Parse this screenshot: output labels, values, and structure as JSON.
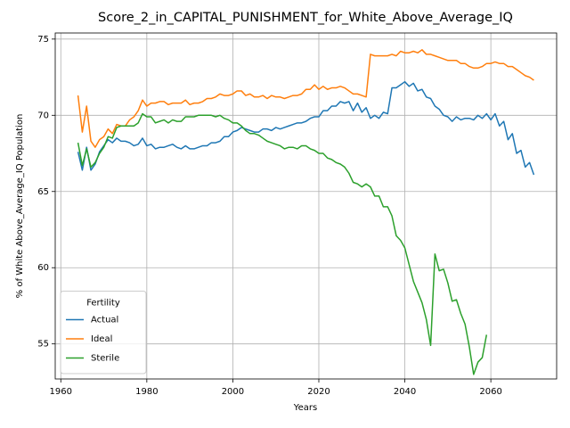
{
  "chart_data": {
    "type": "line",
    "title": "Score_2_in_CAPITAL_PUNISHMENT_for_White_Above_Average_IQ",
    "xlabel": "Years",
    "ylabel": "% of White Above_Average_IQ Population",
    "legend_title": "Fertility",
    "legend": "lower left",
    "grid": true,
    "xlim": [
      1958.7,
      2075.3
    ],
    "ylim": [
      52.7,
      75.4
    ],
    "xticks": [
      1960,
      1980,
      2000,
      2020,
      2040,
      2060
    ],
    "yticks": [
      55,
      60,
      65,
      70,
      75
    ],
    "x": [
      1964,
      1965,
      1966,
      1967,
      1968,
      1969,
      1970,
      1971,
      1972,
      1973,
      1974,
      1975,
      1976,
      1977,
      1978,
      1979,
      1980,
      1981,
      1982,
      1983,
      1984,
      1985,
      1986,
      1987,
      1988,
      1989,
      1990,
      1991,
      1992,
      1993,
      1994,
      1995,
      1996,
      1997,
      1998,
      1999,
      2000,
      2001,
      2002,
      2003,
      2004,
      2005,
      2006,
      2007,
      2008,
      2009,
      2010,
      2011,
      2012,
      2013,
      2014,
      2015,
      2016,
      2017,
      2018,
      2019,
      2020,
      2021,
      2022,
      2023,
      2024,
      2025,
      2026,
      2027,
      2028,
      2029,
      2030,
      2031,
      2032,
      2033,
      2034,
      2035,
      2036,
      2037,
      2038,
      2039,
      2040,
      2041,
      2042,
      2043,
      2044,
      2045,
      2046,
      2047,
      2048,
      2049,
      2050,
      2051,
      2052,
      2053,
      2054,
      2055,
      2056,
      2057,
      2058,
      2059,
      2060,
      2061,
      2062,
      2063,
      2064,
      2065,
      2066,
      2067,
      2068,
      2069,
      2070
    ],
    "series": [
      {
        "name": "Actual",
        "color": "#1f77b4",
        "values": [
          67.6,
          66.4,
          67.9,
          66.4,
          66.8,
          67.6,
          68.0,
          68.4,
          68.2,
          68.5,
          68.3,
          68.3,
          68.2,
          68.0,
          68.1,
          68.5,
          68.0,
          68.1,
          67.8,
          67.9,
          67.9,
          68.0,
          68.1,
          67.9,
          67.8,
          68.0,
          67.8,
          67.8,
          67.9,
          68.0,
          68.0,
          68.2,
          68.2,
          68.3,
          68.6,
          68.6,
          68.9,
          69.0,
          69.2,
          69.1,
          69.0,
          68.9,
          68.9,
          69.1,
          69.1,
          69.0,
          69.2,
          69.1,
          69.2,
          69.3,
          69.4,
          69.5,
          69.5,
          69.6,
          69.8,
          69.9,
          69.9,
          70.3,
          70.3,
          70.6,
          70.6,
          70.9,
          70.8,
          70.9,
          70.3,
          70.8,
          70.2,
          70.5,
          69.8,
          70.0,
          69.8,
          70.2,
          70.1,
          71.8,
          71.8,
          72.0,
          72.2,
          71.9,
          72.1,
          71.6,
          71.7,
          71.2,
          71.1,
          70.6,
          70.4,
          70.0,
          69.9,
          69.6,
          69.9,
          69.7,
          69.8,
          69.8,
          69.7,
          70.0,
          69.8,
          70.1,
          69.7,
          70.1,
          69.3,
          69.6,
          68.4,
          68.8,
          67.5,
          67.7,
          66.6,
          66.9,
          66.1
        ]
      },
      {
        "name": "Ideal",
        "color": "#ff7f0e",
        "values": [
          71.3,
          68.9,
          70.6,
          68.3,
          67.9,
          68.4,
          68.6,
          69.1,
          68.8,
          69.4,
          69.3,
          69.3,
          69.7,
          69.9,
          70.3,
          71.0,
          70.6,
          70.8,
          70.8,
          70.9,
          70.9,
          70.7,
          70.8,
          70.8,
          70.8,
          71.0,
          70.7,
          70.8,
          70.8,
          70.9,
          71.1,
          71.1,
          71.2,
          71.4,
          71.3,
          71.3,
          71.4,
          71.6,
          71.6,
          71.3,
          71.4,
          71.2,
          71.2,
          71.3,
          71.1,
          71.3,
          71.2,
          71.2,
          71.1,
          71.2,
          71.3,
          71.3,
          71.4,
          71.7,
          71.7,
          72.0,
          71.7,
          71.9,
          71.7,
          71.8,
          71.8,
          71.9,
          71.8,
          71.6,
          71.4,
          71.4,
          71.3,
          71.2,
          74.0,
          73.9,
          73.9,
          73.9,
          73.9,
          74.0,
          73.9,
          74.2,
          74.1,
          74.1,
          74.2,
          74.1,
          74.3,
          74.0,
          74.0,
          73.9,
          73.8,
          73.7,
          73.6,
          73.6,
          73.6,
          73.4,
          73.4,
          73.2,
          73.1,
          73.1,
          73.2,
          73.4,
          73.4,
          73.5,
          73.4,
          73.4,
          73.2,
          73.2,
          73.0,
          72.8,
          72.6,
          72.5,
          72.3
        ]
      },
      {
        "name": "Sterile",
        "color": "#2ca02c",
        "values": [
          68.2,
          66.7,
          67.8,
          66.6,
          66.9,
          67.5,
          67.9,
          68.6,
          68.5,
          69.2,
          69.3,
          69.3,
          69.3,
          69.3,
          69.5,
          70.1,
          69.9,
          69.9,
          69.5,
          69.6,
          69.7,
          69.5,
          69.7,
          69.6,
          69.6,
          69.9,
          69.9,
          69.9,
          70.0,
          70.0,
          70.0,
          70.0,
          69.9,
          70.0,
          69.8,
          69.7,
          69.5,
          69.5,
          69.3,
          69.0,
          68.8,
          68.8,
          68.7,
          68.5,
          68.3,
          68.2,
          68.1,
          68.0,
          67.8,
          67.9,
          67.9,
          67.8,
          68.0,
          68.0,
          67.8,
          67.7,
          67.5,
          67.5,
          67.2,
          67.1,
          66.9,
          66.8,
          66.6,
          66.2,
          65.6,
          65.5,
          65.3,
          65.5,
          65.3,
          64.7,
          64.7,
          64.0,
          64.0,
          63.4,
          62.1,
          61.8,
          61.3,
          60.2,
          59.1,
          58.4,
          57.7,
          56.6,
          54.9,
          60.9,
          59.8,
          59.9,
          59.0,
          57.8,
          57.9,
          57.0,
          56.3,
          54.8,
          53.0,
          53.8,
          54.1,
          55.6,
          null,
          null,
          null,
          null,
          null,
          null,
          null,
          null,
          null,
          null,
          null
        ]
      }
    ]
  }
}
